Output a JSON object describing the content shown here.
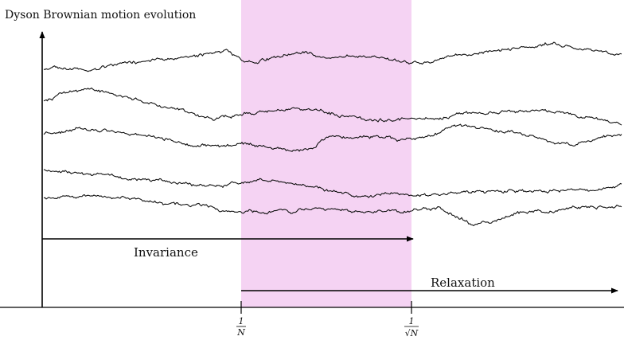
{
  "diagram": {
    "title": "Dyson Brownian motion evolution",
    "labels": {
      "invariance": "Invariance",
      "relaxation": "Relaxation"
    },
    "ticks": {
      "left": {
        "numerator": "1",
        "denominator": "N"
      },
      "right": {
        "numerator": "1",
        "denominator": "√N"
      }
    },
    "paths_count": 5,
    "colors": {
      "band": "#f5d3f3",
      "lines": "#111111",
      "axes": "#000000"
    }
  }
}
